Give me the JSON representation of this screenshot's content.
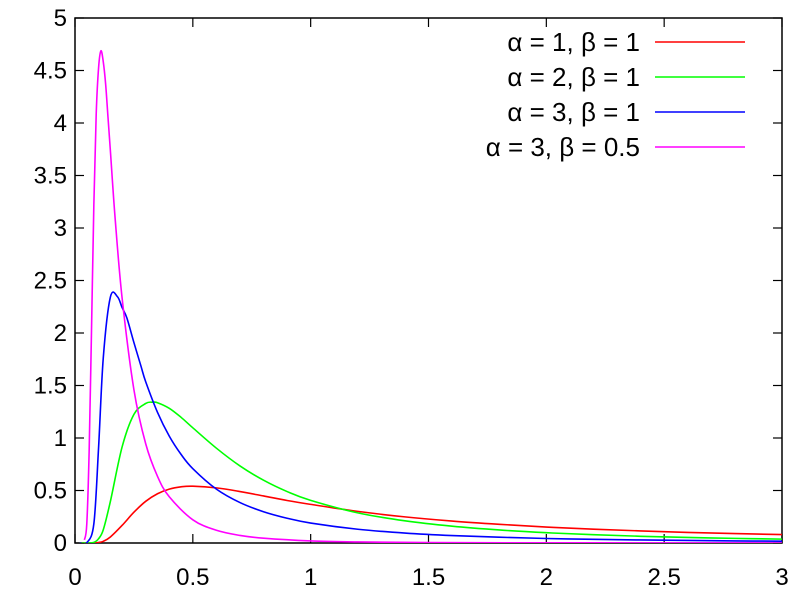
{
  "chart_data": {
    "type": "line",
    "title": "",
    "xlabel": "",
    "ylabel": "",
    "xlim": [
      0,
      3
    ],
    "ylim": [
      0,
      5
    ],
    "x_ticks": [
      "0",
      "0.5",
      "1",
      "1.5",
      "2",
      "2.5",
      "3"
    ],
    "y_ticks": [
      "0",
      "0.5",
      "1",
      "1.5",
      "2",
      "2.5",
      "3",
      "3.5",
      "4",
      "4.5",
      "5"
    ],
    "grid": false,
    "legend_position": "top-right",
    "series": [
      {
        "name": "α = 1, β = 1",
        "color": "#ff0000",
        "x": [
          0.02,
          0.05,
          0.08,
          0.1,
          0.12,
          0.15,
          0.2,
          0.25,
          0.3,
          0.35,
          0.4,
          0.45,
          0.5,
          0.6,
          0.7,
          0.8,
          0.9,
          1.0,
          1.2,
          1.4,
          1.6,
          1.8,
          2.0,
          2.2,
          2.4,
          2.6,
          2.8,
          3.0
        ],
        "y": [
          0.0,
          0.0,
          0.001,
          0.005,
          0.016,
          0.057,
          0.168,
          0.293,
          0.397,
          0.469,
          0.513,
          0.535,
          0.541,
          0.525,
          0.49,
          0.448,
          0.405,
          0.368,
          0.301,
          0.249,
          0.209,
          0.178,
          0.152,
          0.132,
          0.115,
          0.101,
          0.09,
          0.08
        ]
      },
      {
        "name": "α = 2, β = 1",
        "color": "#00ff00",
        "x": [
          0.02,
          0.05,
          0.08,
          0.1,
          0.12,
          0.15,
          0.2,
          0.25,
          0.3,
          0.33,
          0.35,
          0.4,
          0.45,
          0.5,
          0.6,
          0.7,
          0.8,
          0.9,
          1.0,
          1.2,
          1.4,
          1.6,
          1.8,
          2.0,
          2.2,
          2.4,
          2.6,
          2.8,
          3.0
        ],
        "y": [
          0.0,
          0.0,
          0.006,
          0.041,
          0.126,
          0.395,
          0.916,
          1.225,
          1.329,
          1.341,
          1.336,
          1.283,
          1.197,
          1.097,
          0.903,
          0.734,
          0.598,
          0.49,
          0.406,
          0.287,
          0.211,
          0.16,
          0.124,
          0.098,
          0.079,
          0.064,
          0.053,
          0.044,
          0.037
        ]
      },
      {
        "name": "α = 3, β = 1",
        "color": "#0000ff",
        "x": [
          0.02,
          0.05,
          0.08,
          0.1,
          0.12,
          0.15,
          0.18,
          0.2,
          0.22,
          0.25,
          0.28,
          0.3,
          0.35,
          0.4,
          0.45,
          0.5,
          0.6,
          0.7,
          0.8,
          0.9,
          1.0,
          1.2,
          1.4,
          1.6,
          1.8,
          2.0,
          2.2,
          2.4,
          2.6,
          2.8,
          3.0
        ],
        "y": [
          0.0,
          0.003,
          0.183,
          0.908,
          1.764,
          2.341,
          2.346,
          2.242,
          2.144,
          1.909,
          1.684,
          1.536,
          1.245,
          1.018,
          0.844,
          0.708,
          0.513,
          0.385,
          0.298,
          0.236,
          0.19,
          0.131,
          0.095,
          0.071,
          0.055,
          0.043,
          0.035,
          0.029,
          0.024,
          0.02,
          0.017
        ]
      },
      {
        "name": "α = 3, β = 0.5",
        "color": "#ff00ff",
        "x": [
          0.04,
          0.05,
          0.06,
          0.07,
          0.08,
          0.09,
          0.1,
          0.11,
          0.12,
          0.13,
          0.14,
          0.15,
          0.17,
          0.2,
          0.25,
          0.3,
          0.35,
          0.4,
          0.5,
          0.6,
          0.7,
          0.8,
          1.0,
          1.2,
          1.5,
          2.0,
          2.5,
          3.0
        ],
        "y": [
          0.03,
          0.181,
          0.872,
          2.022,
          3.223,
          4.087,
          4.524,
          4.687,
          4.582,
          4.37,
          4.055,
          3.74,
          3.1,
          2.33,
          1.46,
          0.945,
          0.635,
          0.44,
          0.221,
          0.121,
          0.072,
          0.046,
          0.02,
          0.01,
          0.004,
          0.002,
          0.001,
          0.0
        ]
      }
    ]
  }
}
